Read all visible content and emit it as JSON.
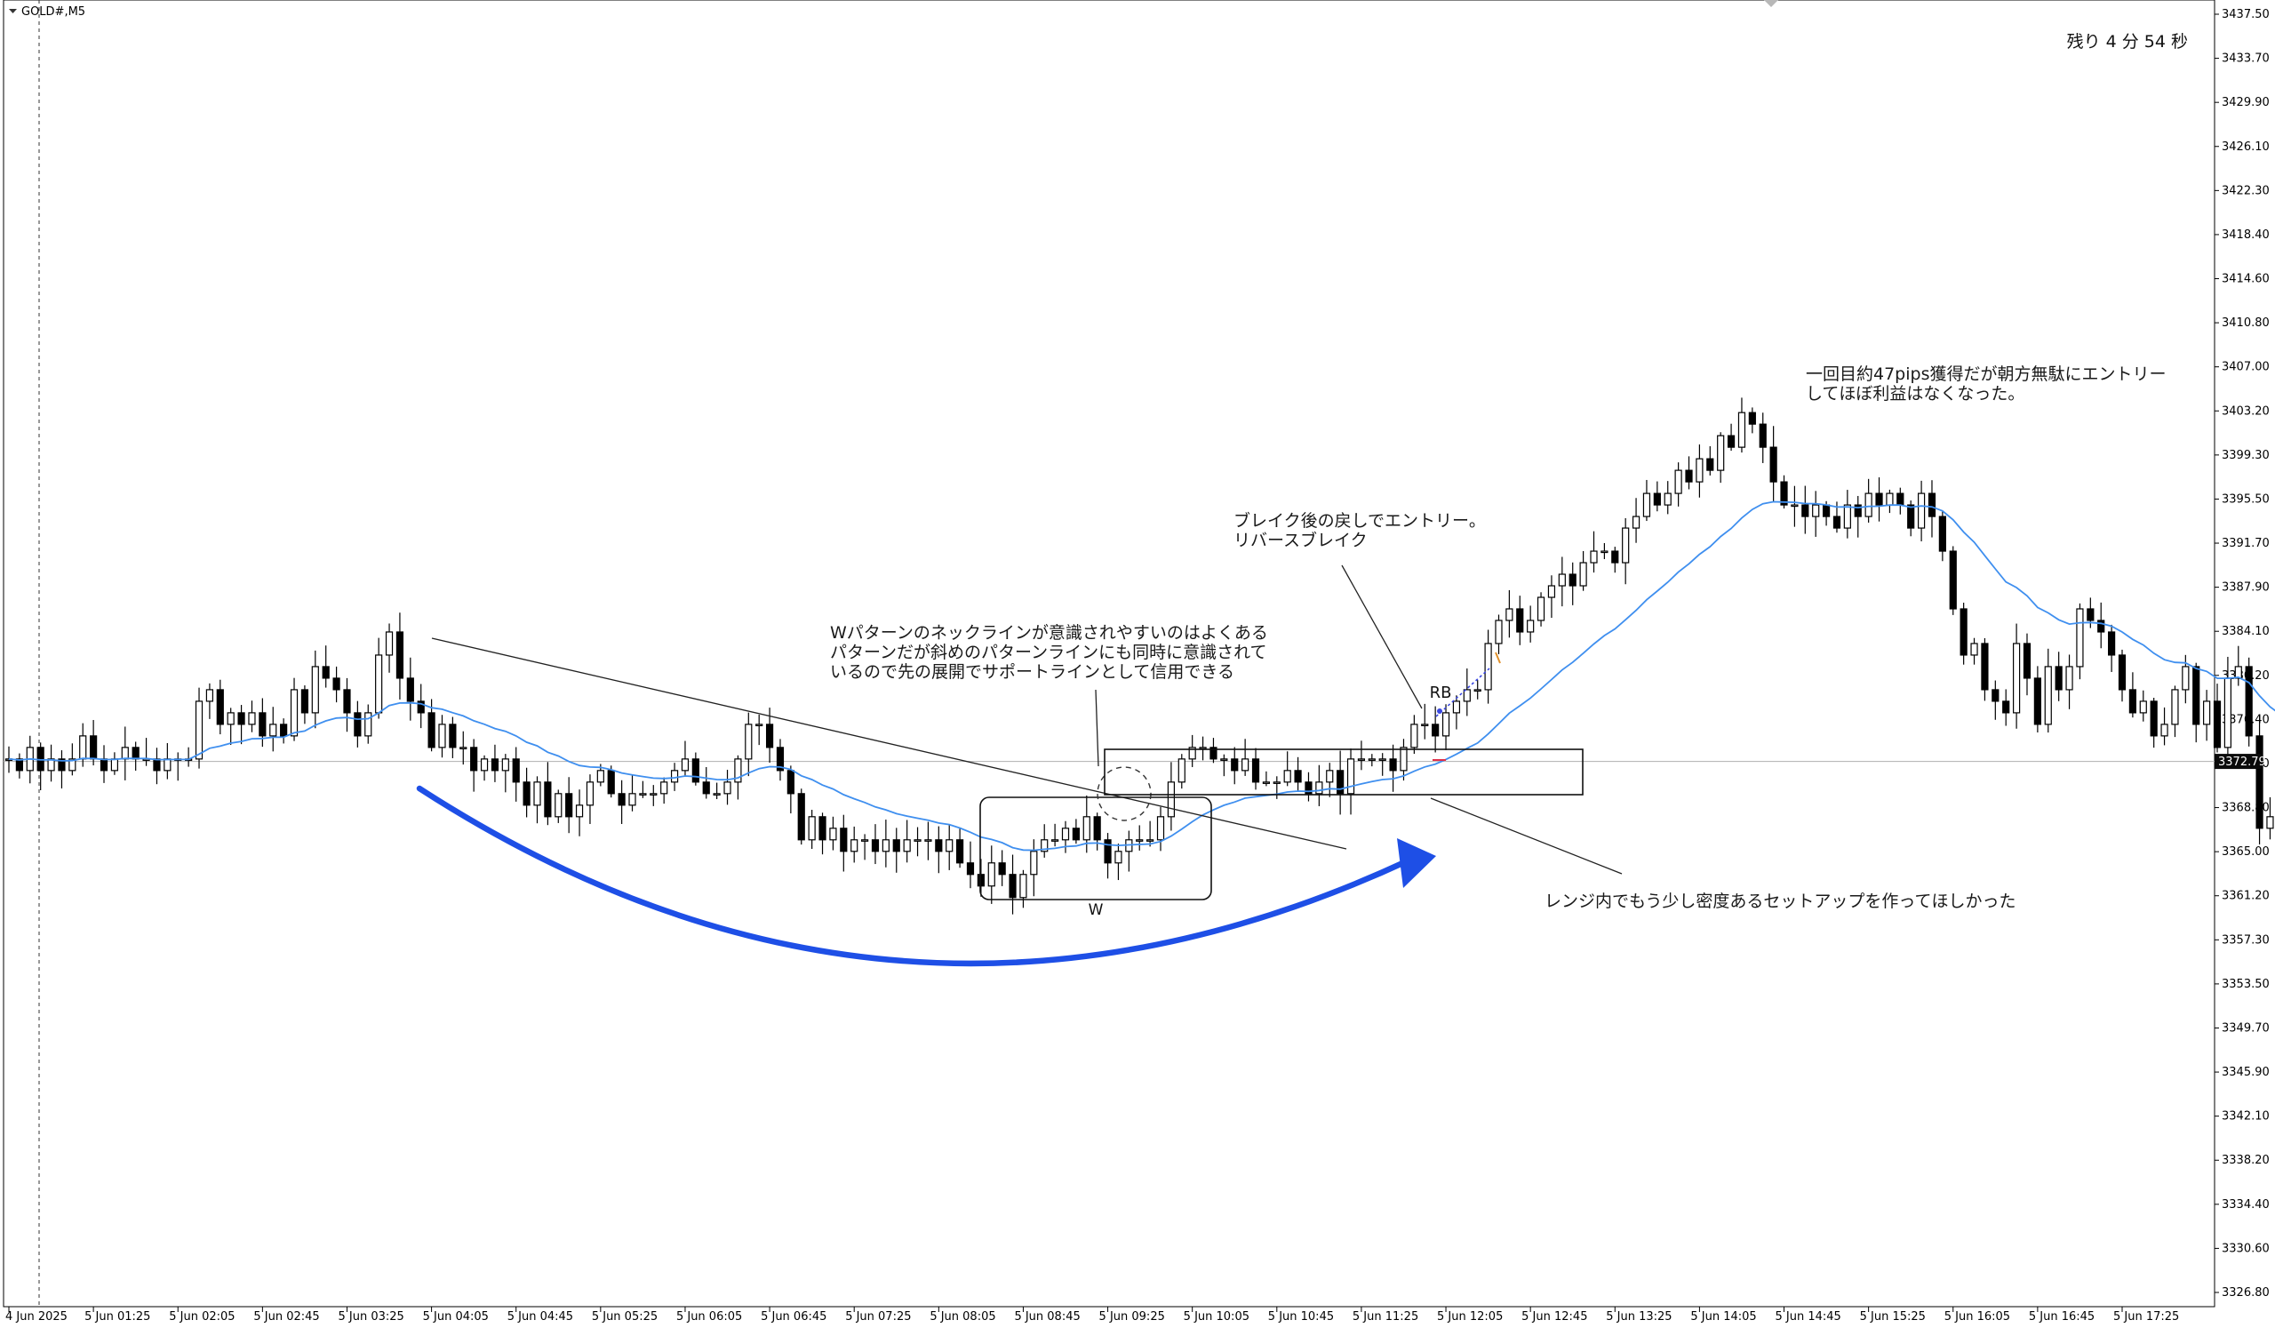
{
  "window": {
    "title": "GOLD#,M5",
    "timer": "残り 4 分 54 秒"
  },
  "chart_data": {
    "type": "candlestick",
    "symbol": "GOLD#",
    "timeframe": "M5",
    "current_price": "3372.79",
    "price_labels": [
      "3437.50",
      "3433.70",
      "3429.90",
      "3426.10",
      "3422.30",
      "3418.40",
      "3414.60",
      "3410.80",
      "3407.00",
      "3403.20",
      "3399.30",
      "3395.50",
      "3391.70",
      "3387.90",
      "3384.10",
      "3380.20",
      "3376.40",
      "3372.60",
      "3368.80",
      "3365.00",
      "3361.20",
      "3357.30",
      "3353.50",
      "3349.70",
      "3345.90",
      "3342.10",
      "3338.20",
      "3334.40",
      "3330.60",
      "3326.80"
    ],
    "ylim": [
      3326.8,
      3437.5
    ],
    "time_labels": [
      "4 Jun 2025",
      "5 Jun 01:25",
      "5 Jun 02:05",
      "5 Jun 02:45",
      "5 Jun 03:25",
      "5 Jun 04:05",
      "5 Jun 04:45",
      "5 Jun 05:25",
      "5 Jun 06:05",
      "5 Jun 06:45",
      "5 Jun 07:25",
      "5 Jun 08:05",
      "5 Jun 08:45",
      "5 Jun 09:25",
      "5 Jun 10:05",
      "5 Jun 10:45",
      "5 Jun 11:25",
      "5 Jun 12:05",
      "5 Jun 12:45",
      "5 Jun 13:25",
      "5 Jun 14:05",
      "5 Jun 14:45",
      "5 Jun 15:25",
      "5 Jun 16:05",
      "5 Jun 16:45",
      "5 Jun 17:25"
    ],
    "bars_between_labels": 8,
    "ma_color": "#3f8fef",
    "arrow_color": "#1e4fe6",
    "closes": [
      3373,
      3372,
      3374,
      3372,
      3373,
      3372,
      3373,
      3375,
      3373,
      3372,
      3373,
      3374,
      3373,
      3373,
      3372,
      3373,
      3373,
      3373,
      3378,
      3379,
      3376,
      3377,
      3376,
      3377,
      3375,
      3376,
      3375,
      3379,
      3377,
      3381,
      3380,
      3379,
      3377,
      3375,
      3377,
      3382,
      3384,
      3380,
      3378,
      3377,
      3374,
      3376,
      3374,
      3374,
      3372,
      3373,
      3372,
      3373,
      3371,
      3369,
      3371,
      3368,
      3370,
      3368,
      3369,
      3371,
      3372,
      3370,
      3369,
      3370,
      3370,
      3370,
      3371,
      3372,
      3373,
      3371,
      3370,
      3370,
      3371,
      3373,
      3376,
      3376,
      3374,
      3372,
      3370,
      3366,
      3368,
      3366,
      3367,
      3365,
      3366,
      3366,
      3365,
      3366,
      3365,
      3366,
      3366,
      3366,
      3365,
      3366,
      3364,
      3363,
      3362,
      3364,
      3363,
      3361,
      3363,
      3365,
      3366,
      3366,
      3367,
      3366,
      3368,
      3366,
      3364,
      3365,
      3366,
      3366,
      3366,
      3368,
      3371,
      3373,
      3374,
      3374,
      3373,
      3373,
      3372,
      3373,
      3371,
      3371,
      3371,
      3372,
      3371,
      3370,
      3371,
      3372,
      3370,
      3373,
      3373,
      3373,
      3373,
      3372,
      3374,
      3376,
      3376,
      3375,
      3377,
      3378,
      3379,
      3379,
      3383,
      3385,
      3386,
      3384,
      3385,
      3387,
      3388,
      3389,
      3388,
      3390,
      3391,
      3391,
      3390,
      3393,
      3394,
      3396,
      3395,
      3396,
      3398,
      3397,
      3399,
      3398,
      3401,
      3400,
      3403,
      3402,
      3400,
      3397,
      3395,
      3395,
      3394,
      3395,
      3394,
      3393,
      3395,
      3394,
      3396,
      3395,
      3396,
      3395,
      3393,
      3396,
      3394,
      3391,
      3386,
      3382,
      3383,
      3379,
      3378,
      3377,
      3383,
      3380,
      3376,
      3381,
      3379,
      3381,
      3386,
      3385,
      3384,
      3382,
      3379,
      3377,
      3378,
      3375,
      3376,
      3379,
      3381,
      3376,
      3378,
      3374,
      3380,
      3381,
      3375,
      3367,
      3368,
      3370
    ]
  },
  "annotations": {
    "w_note_lines": [
      "Wパターンのネックラインが意識されやすいのはよくある",
      "パターンだが斜めのパターンラインにも同時に意識されて",
      "いるので先の展開でサポートラインとして信用できる"
    ],
    "entry_note_lines": [
      "ブレイク後の戻しでエントリー。",
      "リバースブレイク"
    ],
    "result_note_lines": [
      "一回目約47pips獲得だが朝方無駄にエントリー",
      "してほぼ利益はなくなった。"
    ],
    "range_note": "レンジ内でもう少し密度あるセットアップを作ってほしかった",
    "w_label": "W",
    "rb_label": "RB"
  }
}
